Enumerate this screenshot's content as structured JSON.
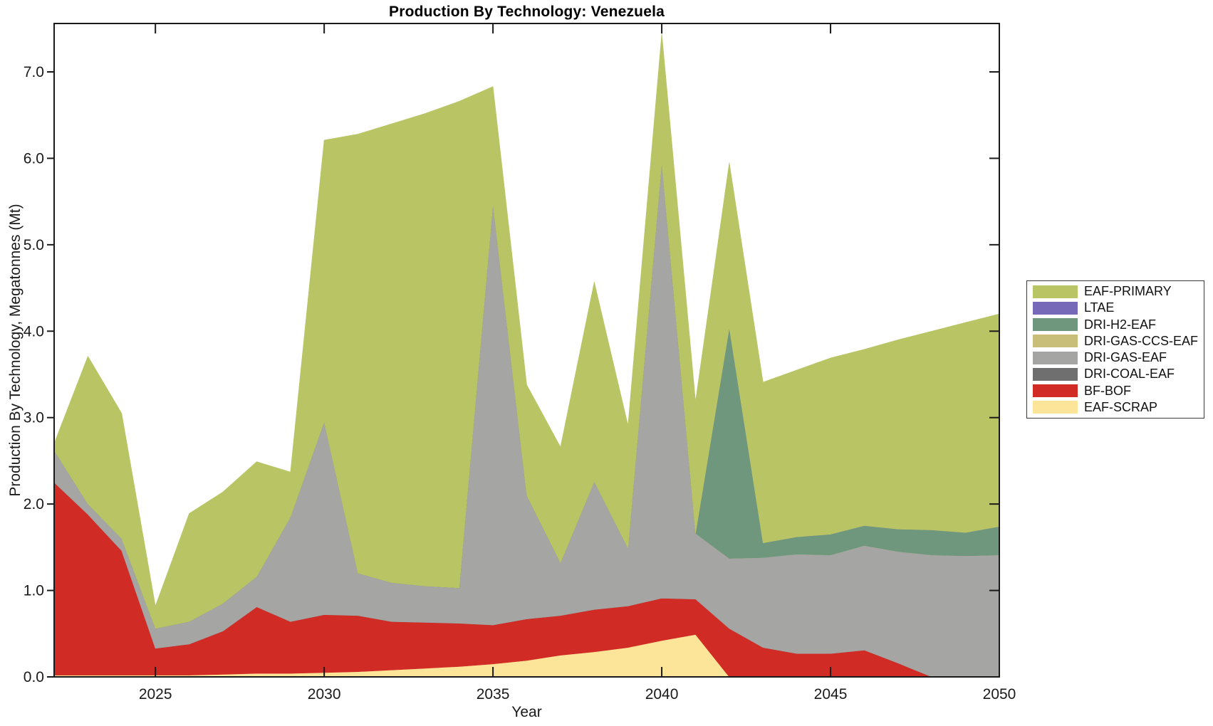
{
  "figure": {
    "title": "Production By Technology: Venezuela",
    "x_axis_label": "Year",
    "y_axis_label": "Production By Technology, Megatonnes (Mt)"
  },
  "colors": {
    "eaf_primary": "#b9c565",
    "ltae": "#7569b8",
    "dri_h2_eaf": "#6f977d",
    "dri_gas_ccs_eaf": "#c9bd7a",
    "dri_gas_eaf": "#a5a5a3",
    "dri_coal_eaf": "#6f6f6f",
    "bf_bof": "#d12b26",
    "eaf_scrap": "#fce498",
    "axis": "#1a1a1a",
    "background": "#ffffff"
  },
  "legend": {
    "position": "outside-right",
    "items": [
      {
        "label": "EAF-PRIMARY",
        "color": "#b9c565"
      },
      {
        "label": "LTAE",
        "color": "#7569b8"
      },
      {
        "label": "DRI-H2-EAF",
        "color": "#6f977d"
      },
      {
        "label": "DRI-GAS-CCS-EAF",
        "color": "#c9bd7a"
      },
      {
        "label": "DRI-GAS-EAF",
        "color": "#a5a5a3"
      },
      {
        "label": "DRI-COAL-EAF",
        "color": "#6f6f6f"
      },
      {
        "label": "BF-BOF",
        "color": "#d12b26"
      },
      {
        "label": "EAF-SCRAP",
        "color": "#fce498"
      }
    ]
  },
  "chart_data": {
    "type": "area",
    "stacked": true,
    "title": "Production By Technology: Venezuela",
    "xlabel": "Year",
    "ylabel": "Production By Technology, Megatonnes (Mt)",
    "xlim": [
      2022,
      2050
    ],
    "ylim": [
      0,
      7.56
    ],
    "grid": false,
    "xticks": [
      2025,
      2030,
      2035,
      2040,
      2045,
      2050
    ],
    "xtick_labels": [
      "2025",
      "2030",
      "2035",
      "2040",
      "2045",
      "2050"
    ],
    "yticks": [
      0,
      1,
      2,
      3,
      4,
      5,
      6,
      7
    ],
    "ytick_labels": [
      "0.0",
      "1.0",
      "2.0",
      "3.0",
      "4.0",
      "5.0",
      "6.0",
      "7.0"
    ],
    "x": [
      2022,
      2023,
      2024,
      2025,
      2026,
      2027,
      2028,
      2029,
      2030,
      2031,
      2032,
      2033,
      2034,
      2035,
      2036,
      2037,
      2038,
      2039,
      2040,
      2041,
      2042,
      2043,
      2044,
      2045,
      2046,
      2047,
      2048,
      2049,
      2050
    ],
    "series_bottom_to_top": [
      {
        "name": "EAF-SCRAP",
        "color": "#fce498",
        "values": [
          0.02,
          0.02,
          0.02,
          0.02,
          0.02,
          0.03,
          0.04,
          0.04,
          0.05,
          0.06,
          0.08,
          0.1,
          0.12,
          0.15,
          0.19,
          0.25,
          0.29,
          0.34,
          0.42,
          0.49,
          0,
          0,
          0,
          0,
          0,
          0,
          0,
          0,
          0
        ]
      },
      {
        "name": "BF-BOF",
        "color": "#d12b26",
        "values": [
          2.23,
          1.86,
          1.44,
          0.31,
          0.36,
          0.5,
          0.77,
          0.6,
          0.67,
          0.65,
          0.56,
          0.53,
          0.5,
          0.45,
          0.48,
          0.46,
          0.49,
          0.48,
          0.49,
          0.41,
          0.56,
          0.34,
          0.27,
          0.27,
          0.31,
          0.16,
          0,
          0,
          0
        ]
      },
      {
        "name": "DRI-COAL-EAF",
        "color": "#6f6f6f",
        "values": [
          0,
          0,
          0,
          0,
          0,
          0,
          0,
          0,
          0,
          0,
          0,
          0,
          0,
          0,
          0,
          0,
          0,
          0,
          0,
          0,
          0,
          0,
          0,
          0,
          0,
          0,
          0,
          0,
          0
        ]
      },
      {
        "name": "DRI-GAS-EAF",
        "color": "#a5a5a3",
        "values": [
          0.37,
          0.12,
          0.14,
          0.23,
          0.26,
          0.32,
          0.35,
          1.21,
          2.23,
          0.49,
          0.45,
          0.42,
          0.41,
          4.87,
          1.43,
          0.61,
          1.48,
          0.67,
          5.04,
          0.76,
          0.81,
          1.04,
          1.15,
          1.14,
          1.21,
          1.29,
          1.41,
          1.4,
          1.41
        ]
      },
      {
        "name": "DRI-GAS-CCS-EAF",
        "color": "#c9bd7a",
        "values": [
          0,
          0,
          0,
          0,
          0,
          0,
          0,
          0,
          0,
          0,
          0,
          0,
          0,
          0,
          0,
          0,
          0,
          0,
          0,
          0,
          0,
          0,
          0,
          0,
          0,
          0,
          0,
          0,
          0
        ]
      },
      {
        "name": "DRI-H2-EAF",
        "color": "#6f977d",
        "values": [
          0,
          0,
          0,
          0,
          0,
          0,
          0,
          0,
          0,
          0,
          0,
          0,
          0,
          0,
          0,
          0,
          0,
          0,
          0,
          0,
          2.67,
          0.17,
          0.2,
          0.24,
          0.23,
          0.26,
          0.29,
          0.27,
          0.33
        ]
      },
      {
        "name": "LTAE",
        "color": "#7569b8",
        "values": [
          0,
          0,
          0,
          0,
          0,
          0,
          0,
          0,
          0,
          0,
          0,
          0,
          0,
          0,
          0,
          0,
          0,
          0,
          0,
          0,
          0,
          0,
          0,
          0,
          0,
          0,
          0,
          0,
          0
        ]
      },
      {
        "name": "EAF-PRIMARY",
        "color": "#b9c565",
        "values": [
          0.08,
          1.71,
          1.45,
          0.26,
          1.25,
          1.29,
          1.33,
          0.52,
          3.26,
          5.08,
          5.31,
          5.47,
          5.63,
          1.36,
          1.28,
          1.34,
          2.31,
          1.42,
          1.5,
          1.53,
          1.91,
          1.86,
          1.93,
          2.04,
          2.04,
          2.19,
          2.3,
          2.43,
          2.46
        ]
      }
    ]
  }
}
